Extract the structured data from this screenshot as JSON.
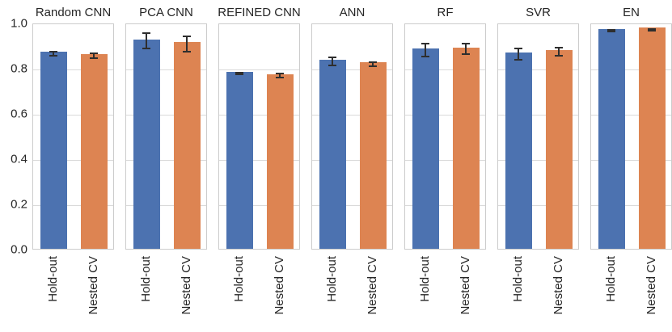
{
  "chart_data": {
    "type": "bar",
    "layout": "7 side-by-side subplots sharing one y axis, white background, light gray grid (seaborn whitegrid)",
    "categories": [
      "Hold-out",
      "Nested CV"
    ],
    "yticks": [
      "1.0",
      "0.8",
      "0.6",
      "0.4",
      "0.2",
      "0.0"
    ],
    "gridline_values": [
      0.8,
      0.6,
      0.4,
      0.2
    ],
    "ylim": [
      0.0,
      1.0
    ],
    "grid": true,
    "legend": "none",
    "panels": [
      {
        "title": "Random CNN",
        "values": [
          0.87,
          0.861
        ],
        "errors": [
          0.012,
          0.014
        ]
      },
      {
        "title": "PCA CNN",
        "values": [
          0.926,
          0.913
        ],
        "errors": [
          0.038,
          0.037
        ]
      },
      {
        "title": "REFINED CNN",
        "values": [
          0.782,
          0.773
        ],
        "errors": [
          0.007,
          0.012
        ]
      },
      {
        "title": "ANN",
        "values": [
          0.836,
          0.824
        ],
        "errors": [
          0.02,
          0.012
        ]
      },
      {
        "title": "RF",
        "values": [
          0.886,
          0.891
        ],
        "errors": [
          0.031,
          0.026
        ]
      },
      {
        "title": "SVR",
        "values": [
          0.868,
          0.879
        ],
        "errors": [
          0.027,
          0.022
        ]
      },
      {
        "title": "EN",
        "values": [
          0.971,
          0.977
        ],
        "errors": [
          0.008,
          0.006
        ]
      }
    ],
    "colors": {
      "holdout_bar": "#4C72B0",
      "nestedcv_bar": "#DD8452",
      "error_bar": "#2e2e2e",
      "gridline": "#d9d9d9",
      "spine": "#cccccc",
      "text": "#262626",
      "background": "#ffffff"
    }
  }
}
